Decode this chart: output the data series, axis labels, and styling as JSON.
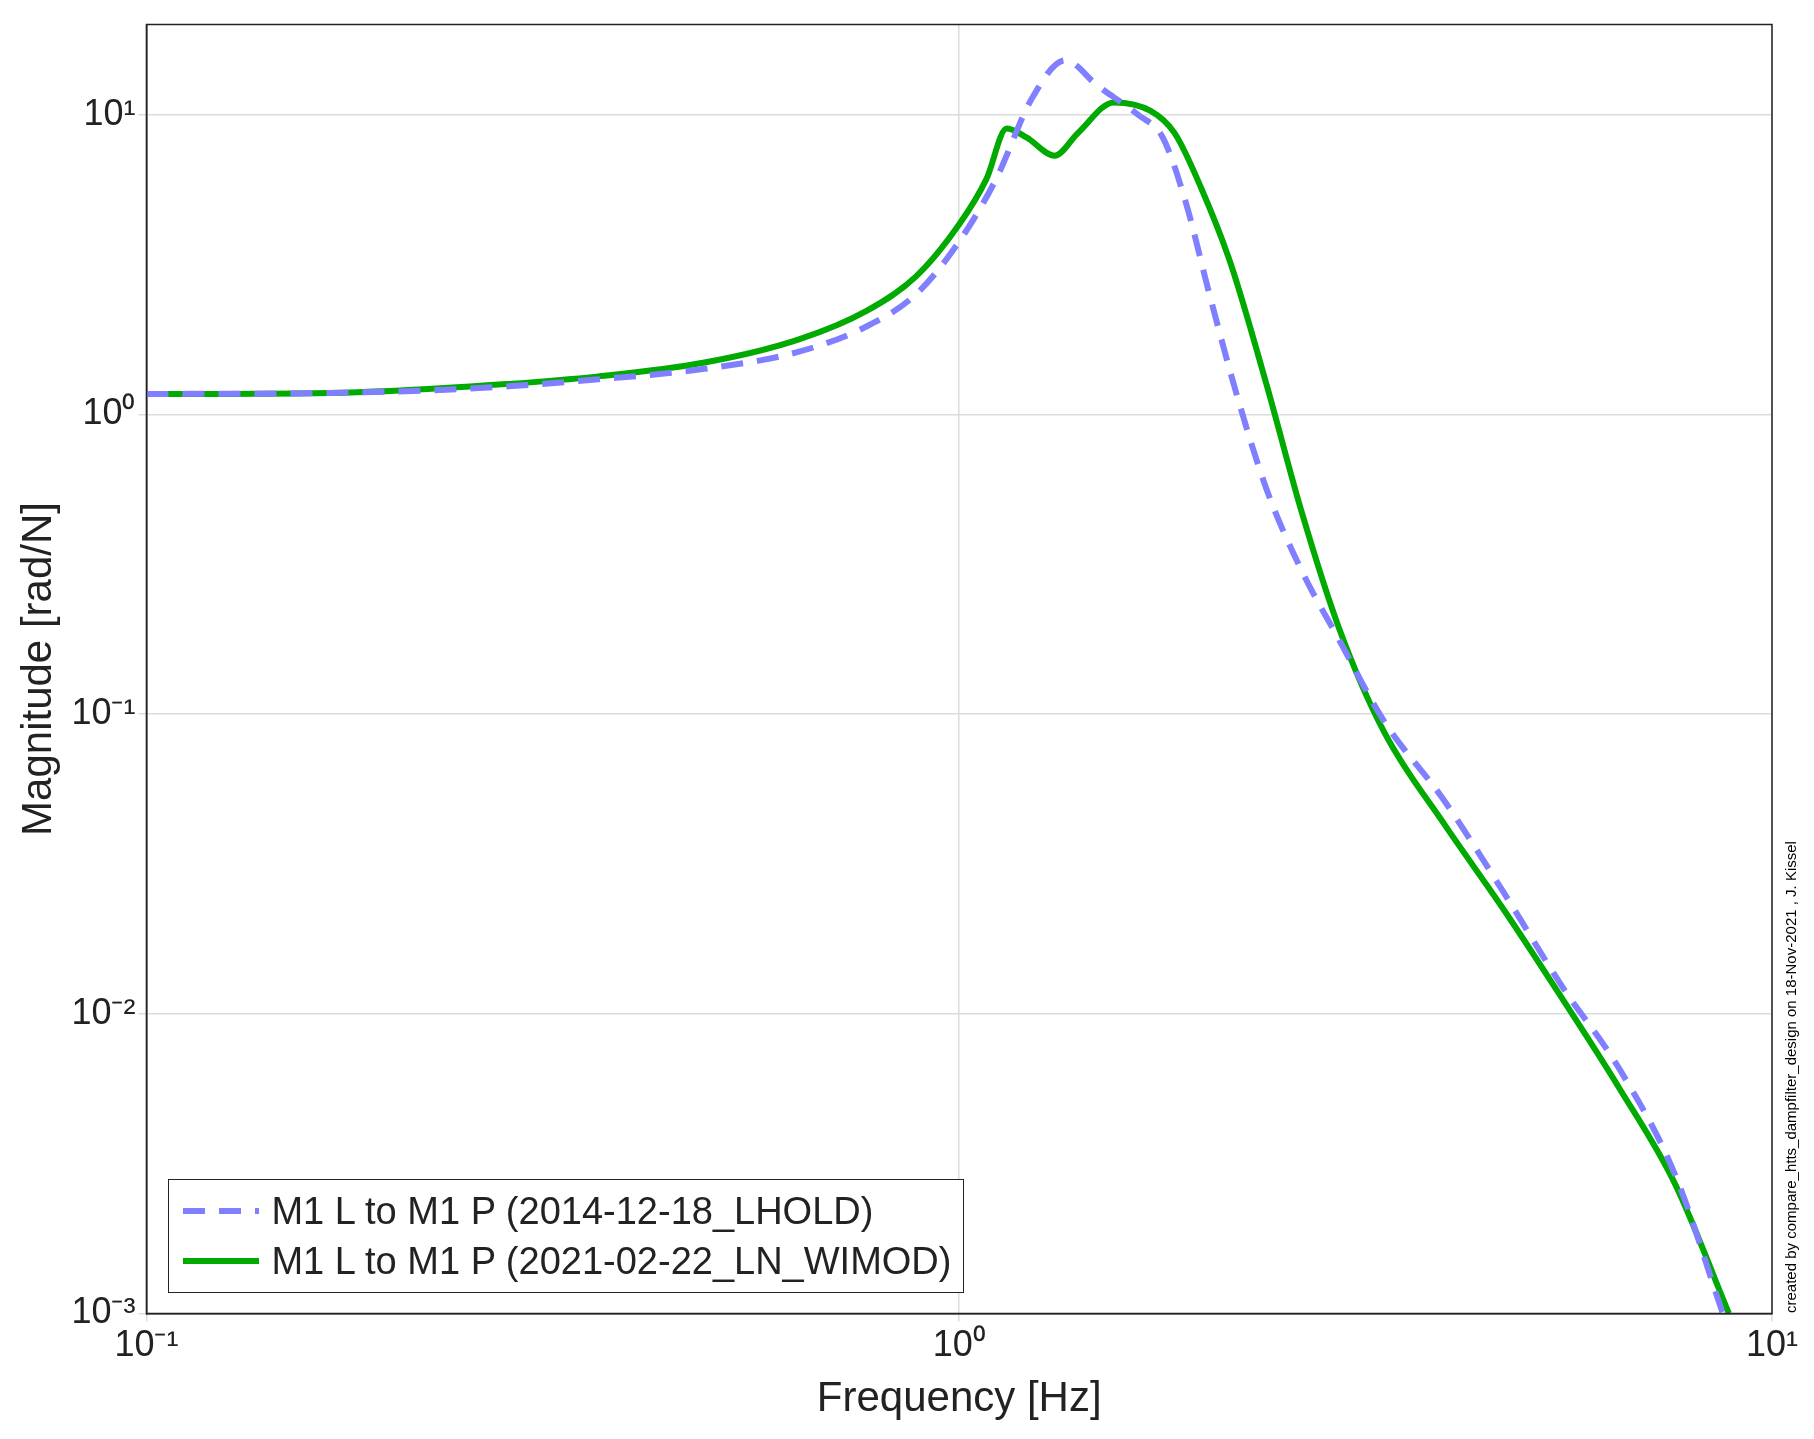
{
  "chart_data": {
    "type": "line",
    "xlabel": "Frequency [Hz]",
    "ylabel": "Magnitude [rad/N]",
    "log": "xy",
    "grid": true,
    "legend": "bottom left",
    "xlim": [
      0.1,
      10
    ],
    "ylim": [
      0.001,
      20
    ],
    "xticks": [
      {
        "value": 0.1,
        "label": "10⁻¹"
      },
      {
        "value": 1,
        "label": "10⁰"
      },
      {
        "value": 10,
        "label": "10¹"
      }
    ],
    "yticks": [
      {
        "value": 0.001,
        "label": "10⁻³"
      },
      {
        "value": 0.01,
        "label": "10⁻²"
      },
      {
        "value": 0.1,
        "label": "10⁻¹"
      },
      {
        "value": 1,
        "label": "10⁰"
      },
      {
        "value": 10,
        "label": "10¹"
      }
    ],
    "annotations": [
      "created by compare_htts_dampfilter_design on 18-Nov-2021 , J. Kissel"
    ],
    "series": [
      {
        "name": "M1 L to M1 P (2014-12-18_LHOLD)",
        "color": "#7f7fff",
        "line_style": "dashed",
        "x": [
          0.1,
          0.168,
          0.25,
          0.36,
          0.486,
          0.635,
          0.77,
          0.885,
          1.0,
          1.11,
          1.23,
          1.35,
          1.48,
          1.66,
          1.78,
          1.9,
          2.03,
          2.2,
          2.39,
          2.64,
          2.93,
          3.33,
          3.95,
          4.68,
          5.5,
          6.5,
          7.6,
          8.7
        ],
        "values": [
          1.17,
          1.18,
          1.22,
          1.31,
          1.42,
          1.62,
          1.97,
          2.52,
          3.78,
          6.1,
          11.4,
          15.2,
          12.5,
          10,
          8.4,
          5.1,
          2.54,
          1.14,
          0.56,
          0.3,
          0.178,
          0.095,
          0.0515,
          0.0253,
          0.0125,
          0.0065,
          0.0029,
          0.001
        ]
      },
      {
        "name": "M1 L to M1 P (2021-02-22_LN_WIMOD)",
        "color": "#00aa00",
        "line_style": "solid",
        "x": [
          0.1,
          0.168,
          0.25,
          0.36,
          0.486,
          0.635,
          0.77,
          0.885,
          1.0,
          1.08,
          1.144,
          1.21,
          1.31,
          1.4,
          1.55,
          1.72,
          1.84,
          1.99,
          2.16,
          2.39,
          2.64,
          2.93,
          3.33,
          3.95,
          4.68,
          5.5,
          6.5,
          7.6,
          8.85
        ],
        "values": [
          1.17,
          1.18,
          1.24,
          1.34,
          1.49,
          1.78,
          2.22,
          2.89,
          4.31,
          6.1,
          9.0,
          8.4,
          7.3,
          8.7,
          11.0,
          10.3,
          8.7,
          5.6,
          3.16,
          1.25,
          0.47,
          0.195,
          0.0875,
          0.043,
          0.0222,
          0.0114,
          0.0056,
          0.0027,
          0.001
        ]
      }
    ]
  }
}
